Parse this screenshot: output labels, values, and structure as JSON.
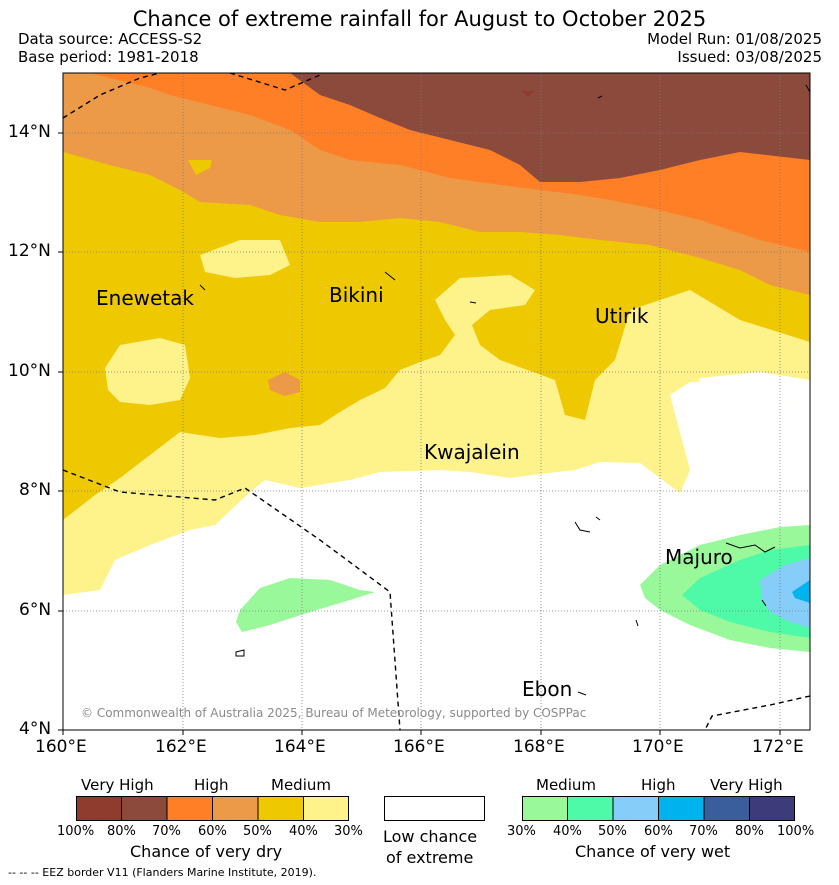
{
  "title": "Chance of extreme rainfall for August to October 2025",
  "header": {
    "data_source": "Data source: ACCESS-S2",
    "base_period": "Base period: 1981-2018",
    "model_run": "Model Run: 01/08/2025",
    "issued": "Issued: 03/08/2025"
  },
  "map": {
    "lat_labels": [
      "14°N",
      "12°N",
      "10°N",
      "8°N",
      "6°N",
      "4°N"
    ],
    "lon_labels": [
      "160°E",
      "162°E",
      "164°E",
      "166°E",
      "168°E",
      "170°E",
      "172°E"
    ],
    "places": [
      "Enewetak",
      "Bikini",
      "Utirik",
      "Kwajalein",
      "Majuro",
      "Ebon"
    ],
    "copyright": "© Commonwealth of Australia 2025, Bureau of Meteorology, supported by COSPPac"
  },
  "dry_colorbar": {
    "category_labels": [
      "Very High",
      "High",
      "Medium"
    ],
    "tick_labels": [
      "100%",
      "80%",
      "70%",
      "60%",
      "50%",
      "40%",
      "30%"
    ],
    "colors": [
      "#8f3b2e",
      "#8b4a3c",
      "#ff7f27",
      "#ec9a48",
      "#eec800",
      "#fef28a"
    ],
    "caption": "Chance of very dry"
  },
  "low_chance": {
    "line1": "Low chance",
    "line2": "of extreme"
  },
  "wet_colorbar": {
    "category_labels": [
      "Medium",
      "High",
      "Very High"
    ],
    "tick_labels": [
      "30%",
      "40%",
      "50%",
      "60%",
      "70%",
      "80%",
      "100%"
    ],
    "colors": [
      "#99f899",
      "#4efaa8",
      "#86cdf9",
      "#00b3ef",
      "#3a5e9c",
      "#3d3b7a"
    ],
    "caption": "Chance of very wet"
  },
  "eez_note": "--  --  -- EEZ border V11 (Flanders Marine Institute, 2019)."
}
